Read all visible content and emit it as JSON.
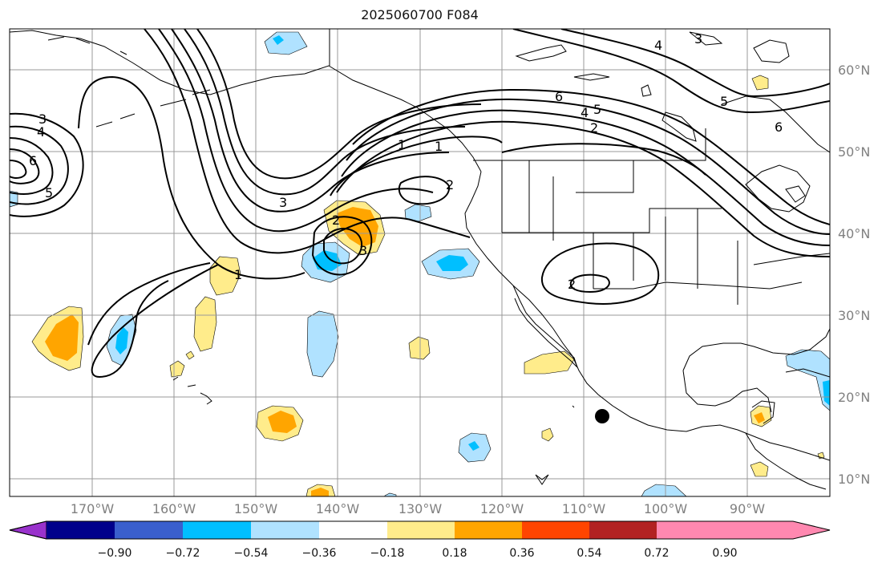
{
  "title": "2025060700 F084",
  "latitude_labels": [
    "60°N",
    "50°N",
    "40°N",
    "30°N",
    "20°N",
    "10°N"
  ],
  "longitude_labels": [
    "170°W",
    "160°W",
    "150°W",
    "140°W",
    "130°W",
    "120°W",
    "110°W",
    "100°W",
    "90°W"
  ],
  "contour_labels": [
    "1",
    "1",
    "1",
    "2",
    "2",
    "2",
    "2",
    "3",
    "3",
    "3",
    "3",
    "4",
    "4",
    "4",
    "5",
    "5",
    "5",
    "6",
    "6",
    "6"
  ],
  "colorbar": {
    "tick_labels": [
      "−0.90",
      "−0.72",
      "−0.54",
      "−0.36",
      "−0.18",
      "0.18",
      "0.36",
      "0.54",
      "0.72",
      "0.90"
    ],
    "colors": [
      "#9932cc",
      "#00008b",
      "#3a5fcd",
      "#00bfff",
      "#b0e2ff",
      "#ffffff",
      "#ffec8b",
      "#ffa500",
      "#ff4500",
      "#b22222",
      "#ff88b0"
    ]
  },
  "colors": {
    "light_blue": "#b0e2ff",
    "sky_blue": "#00bfff",
    "light_yellow": "#ffec8b",
    "orange": "#ffa500",
    "contour": "#000000",
    "grid": "#999999"
  }
}
